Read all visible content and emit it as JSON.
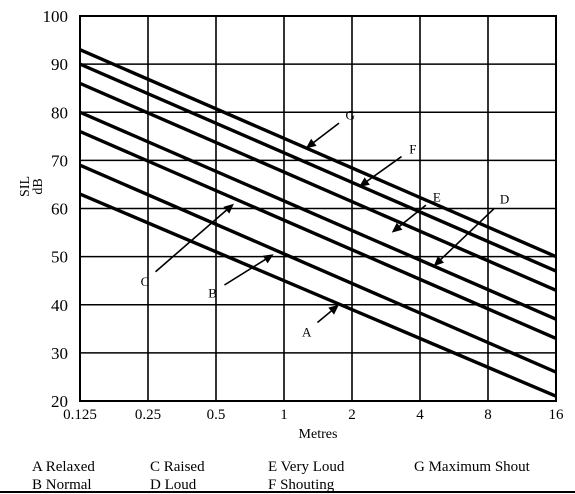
{
  "chart_data": {
    "type": "line",
    "xlabel": "Metres",
    "ylabel": "SIL dB",
    "ylabel_lines": [
      "SIL",
      "dB"
    ],
    "x_scale": "log2",
    "x_ticks": [
      0.125,
      0.25,
      0.5,
      1,
      2,
      4,
      8,
      16
    ],
    "x_tick_labels": [
      "0.125",
      "0.25",
      "0.5",
      "1",
      "2",
      "4",
      "8",
      "16"
    ],
    "xlim": [
      0.125,
      16
    ],
    "y_ticks": [
      20,
      30,
      40,
      50,
      60,
      70,
      80,
      90,
      100
    ],
    "y_tick_labels": [
      "20",
      "30",
      "40",
      "50",
      "60",
      "70",
      "80",
      "90",
      "100"
    ],
    "ylim": [
      20,
      100
    ],
    "grid": true,
    "series": [
      {
        "name": "A",
        "label": "A Relaxed",
        "x": [
          0.125,
          16
        ],
        "y": [
          63,
          21
        ]
      },
      {
        "name": "B",
        "label": "B Normal",
        "x": [
          0.125,
          16
        ],
        "y": [
          69,
          26
        ]
      },
      {
        "name": "C",
        "label": "C Raised",
        "x": [
          0.125,
          16
        ],
        "y": [
          76,
          33
        ]
      },
      {
        "name": "D",
        "label": "D Loud",
        "x": [
          0.125,
          16
        ],
        "y": [
          80,
          37
        ]
      },
      {
        "name": "E",
        "label": "E Very Loud",
        "x": [
          0.125,
          16
        ],
        "y": [
          86,
          43
        ]
      },
      {
        "name": "F",
        "label": "F Shouting",
        "x": [
          0.125,
          16
        ],
        "y": [
          90,
          47
        ]
      },
      {
        "name": "G",
        "label": "G Maximum Shout",
        "x": [
          0.125,
          16
        ],
        "y": [
          93,
          50
        ]
      }
    ],
    "annotations": [
      {
        "text": "A",
        "tip": [
          1.75,
          40
        ],
        "tail": [
          1.3,
          35
        ]
      },
      {
        "text": "B",
        "tip": [
          0.9,
          50.5
        ],
        "tail": [
          0.5,
          43
        ]
      },
      {
        "text": "C",
        "tip": [
          0.6,
          61
        ],
        "tail": [
          0.25,
          45.5
        ]
      },
      {
        "text": "D",
        "tip": [
          4.6,
          48
        ],
        "tail": [
          9.2,
          61.5
        ]
      },
      {
        "text": "E",
        "tip": [
          3.0,
          55
        ],
        "tail": [
          4.6,
          62
        ]
      },
      {
        "text": "F",
        "tip": [
          2.15,
          64.5
        ],
        "tail": [
          3.6,
          72
        ]
      },
      {
        "text": "G",
        "tip": [
          1.25,
          72.5
        ],
        "tail": [
          1.9,
          79
        ]
      }
    ],
    "legend": {
      "position": "bottom",
      "items": [
        "A Relaxed",
        "C Raised",
        "E Very Loud",
        "G Maximum Shout",
        "B Normal",
        "D Loud",
        "F Shouting"
      ]
    }
  }
}
